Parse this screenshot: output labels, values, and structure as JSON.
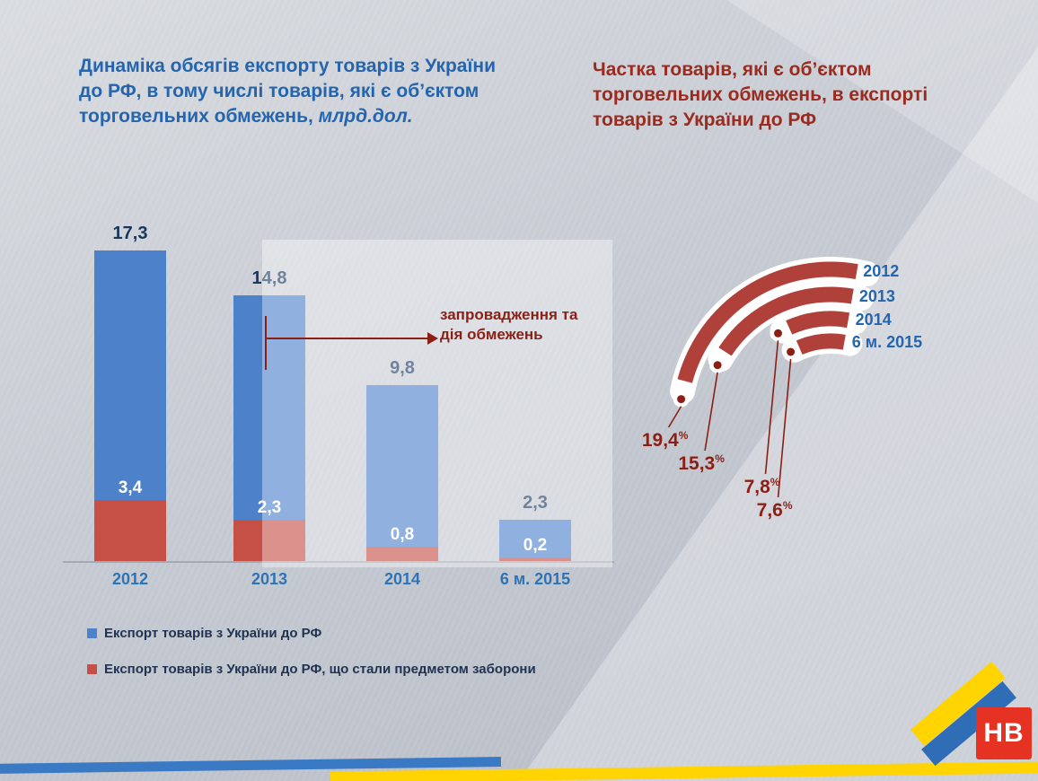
{
  "titles": {
    "left_main": "Динаміка обсягів експорту товарів з України до РФ, в тому числі товарів, які є об’єктом торговельних обмежень,",
    "left_unit": "млрд.дол.",
    "right": "Частка товарів, які є об’єктом торговельних обмежень, в експорті товарів з України до РФ"
  },
  "legend": {
    "items": [
      {
        "label": "Експорт товарів з України до РФ",
        "color": "#4d82cb"
      },
      {
        "label": "Експорт товарів з України до РФ, що стали предметом заборони",
        "color": "#c64f46"
      }
    ]
  },
  "logo": {
    "text": "НВ"
  },
  "colors": {
    "title_blue": "#2465ae",
    "title_red": "#9b2a1f",
    "bar_blue": "#4d82cb",
    "bar_red": "#c64f46",
    "axis_year_blue": "#2e74b5",
    "value_navy": "#17375e",
    "arc_red": "#b0413a",
    "dark_red": "#8c1f14",
    "flag_blue": "#2f6db6",
    "flag_yellow": "#ffd400"
  },
  "chart_data": [
    {
      "type": "bar",
      "title": "Динаміка обсягів експорту товарів з України до РФ, в тому числі товарів, які є об’єктом торговельних обмежень, млрд.дол.",
      "unit": "млрд.дол.",
      "categories": [
        "2012",
        "2013",
        "2014",
        "6 м. 2015"
      ],
      "series": [
        {
          "name": "Експорт товарів з України до РФ",
          "color": "#4d82cb",
          "values": [
            17.3,
            14.8,
            9.8,
            2.3
          ],
          "labels": [
            "17,3",
            "14,8",
            "9,8",
            "2,3"
          ]
        },
        {
          "name": "Експорт товарів з України до РФ, що стали предметом заборони",
          "color": "#c64f46",
          "values": [
            3.4,
            2.3,
            0.8,
            0.2
          ],
          "labels": [
            "3,4",
            "2,3",
            "0,8",
            "0,2"
          ]
        }
      ],
      "annotation": "запровадження та дія обмежень",
      "highlight_region": "2013 — 6 м. 2015",
      "ylim": [
        0,
        18
      ],
      "grid": false,
      "legend_position": "bottom-left"
    },
    {
      "type": "arc",
      "title": "Частка товарів, які є об’єктом торговельних обмежень, в експорті товарів з України до РФ",
      "categories": [
        "2012",
        "2013",
        "2014",
        "6 м. 2015"
      ],
      "values": [
        19.4,
        15.3,
        7.8,
        7.6
      ],
      "labels": [
        "19,4",
        "15,3",
        "7,8",
        "7,6"
      ],
      "unit": "%"
    }
  ]
}
